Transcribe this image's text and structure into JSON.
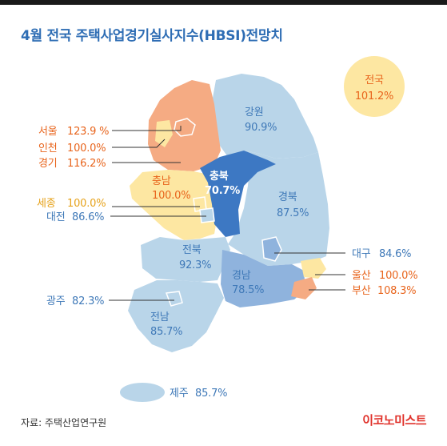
{
  "title": "4월 전국 주택사업경기실사지수(HBSI)전망치",
  "national": {
    "name": "전국",
    "value": "101.2%"
  },
  "regions": {
    "seoul": {
      "name": "서울",
      "value": "123.9 %"
    },
    "incheon": {
      "name": "인천",
      "value": "100.0%"
    },
    "gyeonggi": {
      "name": "경기",
      "value": "116.2%"
    },
    "gangwon": {
      "name": "강원",
      "value": "90.9%"
    },
    "chungnam": {
      "name": "충남",
      "value": "100.0%"
    },
    "chungbuk": {
      "name": "충북",
      "value": "70.7%"
    },
    "sejong": {
      "name": "세종",
      "value": "100.0%"
    },
    "daejeon": {
      "name": "대전",
      "value": "86.6%"
    },
    "gyeongbuk": {
      "name": "경북",
      "value": "87.5%"
    },
    "daegu": {
      "name": "대구",
      "value": "84.6%"
    },
    "jeonbuk": {
      "name": "전북",
      "value": "92.3%"
    },
    "gyeongnam": {
      "name": "경남",
      "value": "78.5%"
    },
    "ulsan": {
      "name": "울산",
      "value": "100.0%"
    },
    "busan": {
      "name": "부산",
      "value": "108.3%"
    },
    "gwangju": {
      "name": "광주",
      "value": "82.3%"
    },
    "jeonnam": {
      "name": "전남",
      "value": "85.7%"
    },
    "jeju": {
      "name": "제주",
      "value": "85.7%"
    }
  },
  "colors": {
    "below_100": "#b9d5e9",
    "deep_low": "#3d78c3",
    "medium_low": "#8fb3dd",
    "at_100": "#fde7a2",
    "above_100": "#f5ab83",
    "label_blue": "#3f79b8",
    "label_orange": "#e8641c",
    "label_yellow": "#e6a21a"
  },
  "source": "자료: 주택산업연구원",
  "brand": "이코노미스트"
}
